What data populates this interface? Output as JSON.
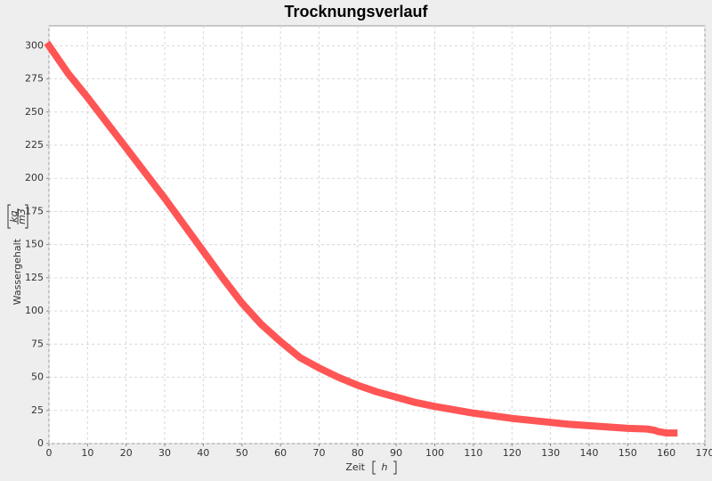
{
  "chart_data": {
    "type": "line",
    "title": "Trocknungsverlauf",
    "x_label": "Zeit",
    "x_unit": "h",
    "y_label": "Wassergehalt",
    "y_unit_numerator": "kg",
    "y_unit_denominator": "m3",
    "x": [
      0,
      5,
      10,
      15,
      20,
      25,
      30,
      35,
      40,
      45,
      50,
      55,
      60,
      65,
      70,
      75,
      80,
      85,
      90,
      95,
      100,
      105,
      110,
      115,
      120,
      125,
      130,
      135,
      140,
      145,
      150,
      155,
      157,
      158,
      160,
      162
    ],
    "series": [
      {
        "name": "Wassergehalt",
        "color": "#ff5555",
        "values": [
          300,
          279,
          261,
          242,
          223,
          204,
          185,
          165,
          145,
          125,
          106,
          90,
          77,
          65,
          57,
          50,
          44,
          39,
          35,
          31,
          28,
          25.5,
          23,
          21,
          19,
          17.5,
          16,
          14.5,
          13.5,
          12.5,
          11.5,
          11,
          10,
          9,
          8,
          8
        ]
      }
    ],
    "xlim": [
      0,
      170
    ],
    "xticks": [
      0,
      10,
      20,
      30,
      40,
      50,
      60,
      70,
      80,
      90,
      100,
      110,
      120,
      130,
      140,
      150,
      160,
      170
    ],
    "ylim": [
      0,
      315
    ],
    "yticks": [
      0,
      25,
      50,
      75,
      100,
      125,
      150,
      175,
      200,
      225,
      250,
      275,
      300
    ],
    "grid": true
  }
}
